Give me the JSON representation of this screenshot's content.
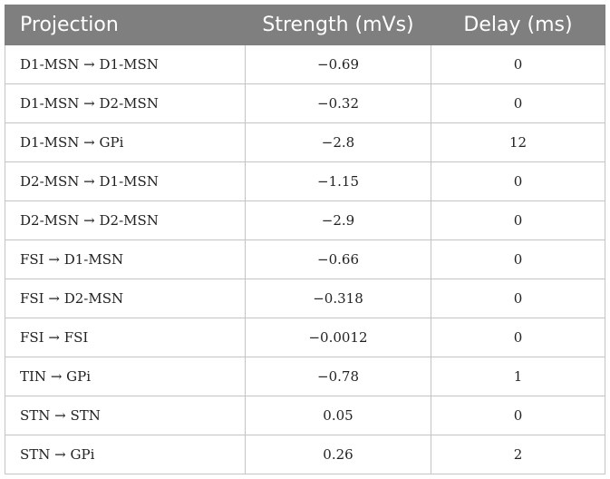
{
  "table": {
    "headers": [
      "Projection",
      "Strength (mVs)",
      "Delay (ms)"
    ],
    "rows": [
      [
        "D1-MSN → D1-MSN",
        "−0.69",
        "0"
      ],
      [
        "D1-MSN → D2-MSN",
        "−0.32",
        "0"
      ],
      [
        "D1-MSN → GPi",
        "−2.8",
        "12"
      ],
      [
        "D2-MSN → D1-MSN",
        "−1.15",
        "0"
      ],
      [
        "D2-MSN → D2-MSN",
        "−2.9",
        "0"
      ],
      [
        "FSI → D1-MSN",
        "−0.66",
        "0"
      ],
      [
        "FSI → D2-MSN",
        "−0.318",
        "0"
      ],
      [
        "FSI → FSI",
        "−0.0012",
        "0"
      ],
      [
        "TIN → GPi",
        "−0.78",
        "1"
      ],
      [
        "STN → STN",
        "0.05",
        "0"
      ],
      [
        "STN → GPi",
        "0.26",
        "2"
      ]
    ]
  },
  "colors": {
    "header_bg": "#7f7f7f",
    "header_text": "#ffffff",
    "grid": "#c4c4c4",
    "cell_text": "#222222"
  }
}
